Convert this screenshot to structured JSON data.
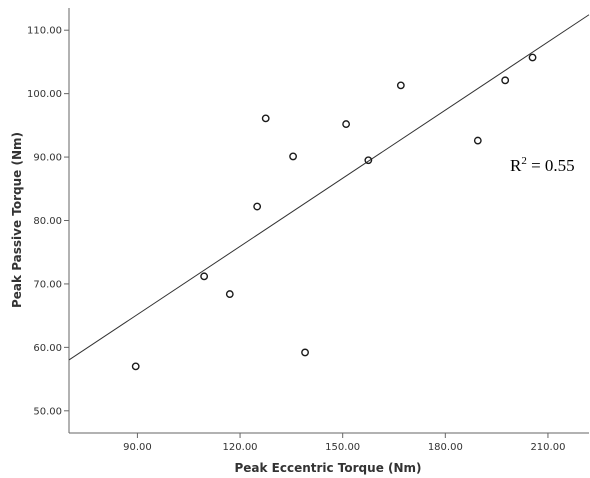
{
  "chart_data": {
    "type": "scatter",
    "xlabel": "Peak Eccentric Torque (Nm)",
    "ylabel": "Peak Passive Torque (Nm)",
    "xlim": [
      70,
      222
    ],
    "ylim": [
      46.5,
      113.5
    ],
    "xticks": [
      "90.00",
      "120.00",
      "150.00",
      "180.00",
      "210.00"
    ],
    "yticks": [
      "50.00",
      "60.00",
      "70.00",
      "80.00",
      "90.00",
      "100.00",
      "110.00"
    ],
    "points": [
      {
        "x": 89.5,
        "y": 57.0
      },
      {
        "x": 109.5,
        "y": 71.2
      },
      {
        "x": 117.0,
        "y": 68.4
      },
      {
        "x": 125.0,
        "y": 82.2
      },
      {
        "x": 127.5,
        "y": 96.1
      },
      {
        "x": 135.5,
        "y": 90.1
      },
      {
        "x": 139.0,
        "y": 59.2
      },
      {
        "x": 151.0,
        "y": 95.2
      },
      {
        "x": 157.5,
        "y": 89.5
      },
      {
        "x": 167.0,
        "y": 101.3
      },
      {
        "x": 189.5,
        "y": 92.6
      },
      {
        "x": 197.5,
        "y": 102.1
      },
      {
        "x": 205.5,
        "y": 105.7
      }
    ],
    "fit_line": {
      "slope": 0.358,
      "intercept": 32.96
    },
    "annotation": {
      "base": "R",
      "sup": "2",
      "rest": " = 0.55"
    },
    "grid": false,
    "legend": "none",
    "colors": {
      "marker": "#1a1a1a",
      "line": "#333333",
      "axis": "#666666"
    }
  }
}
